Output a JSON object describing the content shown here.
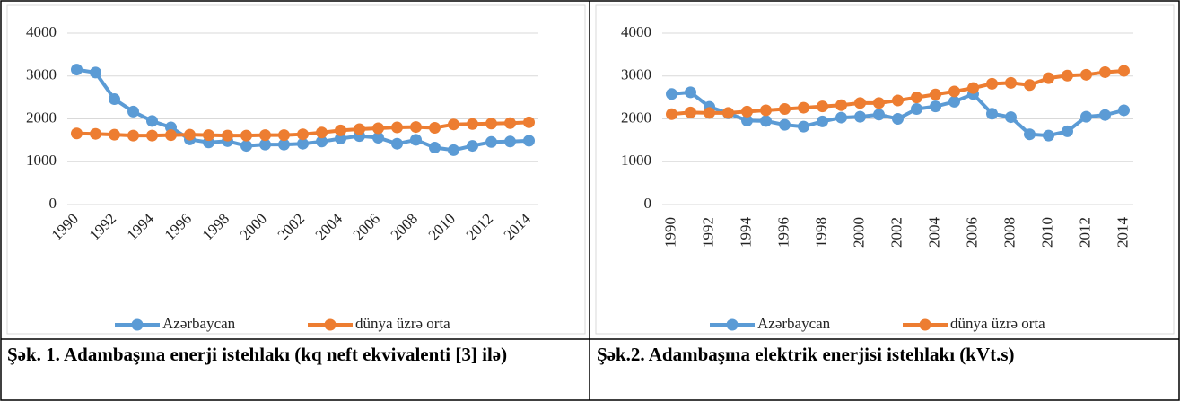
{
  "chart_data": [
    {
      "type": "line",
      "title": "Şək. 1. Adambaşına enerji istehlakı (kq neft ekvivalenti [3] ilə)",
      "categories": [
        1990,
        null,
        1992,
        null,
        1994,
        null,
        1996,
        null,
        1998,
        null,
        2000,
        null,
        2002,
        null,
        2004,
        null,
        2006,
        null,
        2008,
        null,
        2010,
        null,
        2012,
        null,
        2014
      ],
      "series": [
        {
          "name": "Azərbaycan",
          "color": "#5b9bd5",
          "values": [
            3150,
            3080,
            2460,
            2170,
            1950,
            1800,
            1520,
            1450,
            1480,
            1370,
            1400,
            1400,
            1420,
            1470,
            1540,
            1600,
            1560,
            1420,
            1510,
            1330,
            1270,
            1370,
            1460,
            1470,
            1490
          ]
        },
        {
          "name": "dünya üzrə orta",
          "color": "#ed7d31",
          "values": [
            1660,
            1650,
            1630,
            1610,
            1610,
            1620,
            1630,
            1620,
            1610,
            1610,
            1620,
            1620,
            1640,
            1680,
            1730,
            1760,
            1780,
            1800,
            1810,
            1790,
            1870,
            1880,
            1890,
            1900,
            1920
          ]
        }
      ],
      "ylim": [
        0,
        4000
      ],
      "yticks": [
        0,
        1000,
        2000,
        3000,
        4000
      ],
      "grid": true,
      "legend": "bottom",
      "xtick_rotation": 45
    },
    {
      "type": "line",
      "title": "Şək.2. Adambaşına elektrik enerjisi istehlakı (kVt.s)",
      "categories": [
        1990,
        null,
        1992,
        null,
        1994,
        null,
        1996,
        null,
        1998,
        null,
        2000,
        null,
        2002,
        null,
        2004,
        null,
        2006,
        null,
        2008,
        null,
        2010,
        null,
        2012,
        null,
        2014
      ],
      "series": [
        {
          "name": "Azərbaycan",
          "color": "#5b9bd5",
          "values": [
            2580,
            2620,
            2280,
            2130,
            1960,
            1950,
            1860,
            1820,
            1940,
            2030,
            2050,
            2100,
            2000,
            2230,
            2290,
            2400,
            2580,
            2120,
            2040,
            1640,
            1610,
            1710,
            2050,
            2090,
            2200
          ]
        },
        {
          "name": "dünya üzrə orta",
          "color": "#ed7d31",
          "values": [
            2110,
            2150,
            2140,
            2140,
            2170,
            2200,
            2230,
            2260,
            2290,
            2320,
            2370,
            2370,
            2430,
            2500,
            2570,
            2640,
            2720,
            2820,
            2840,
            2790,
            2950,
            3010,
            3030,
            3090,
            3120
          ]
        }
      ],
      "ylim": [
        0,
        4000
      ],
      "yticks": [
        0,
        1000,
        2000,
        3000,
        4000
      ],
      "grid": true,
      "legend": "bottom",
      "xtick_rotation": 90
    }
  ]
}
